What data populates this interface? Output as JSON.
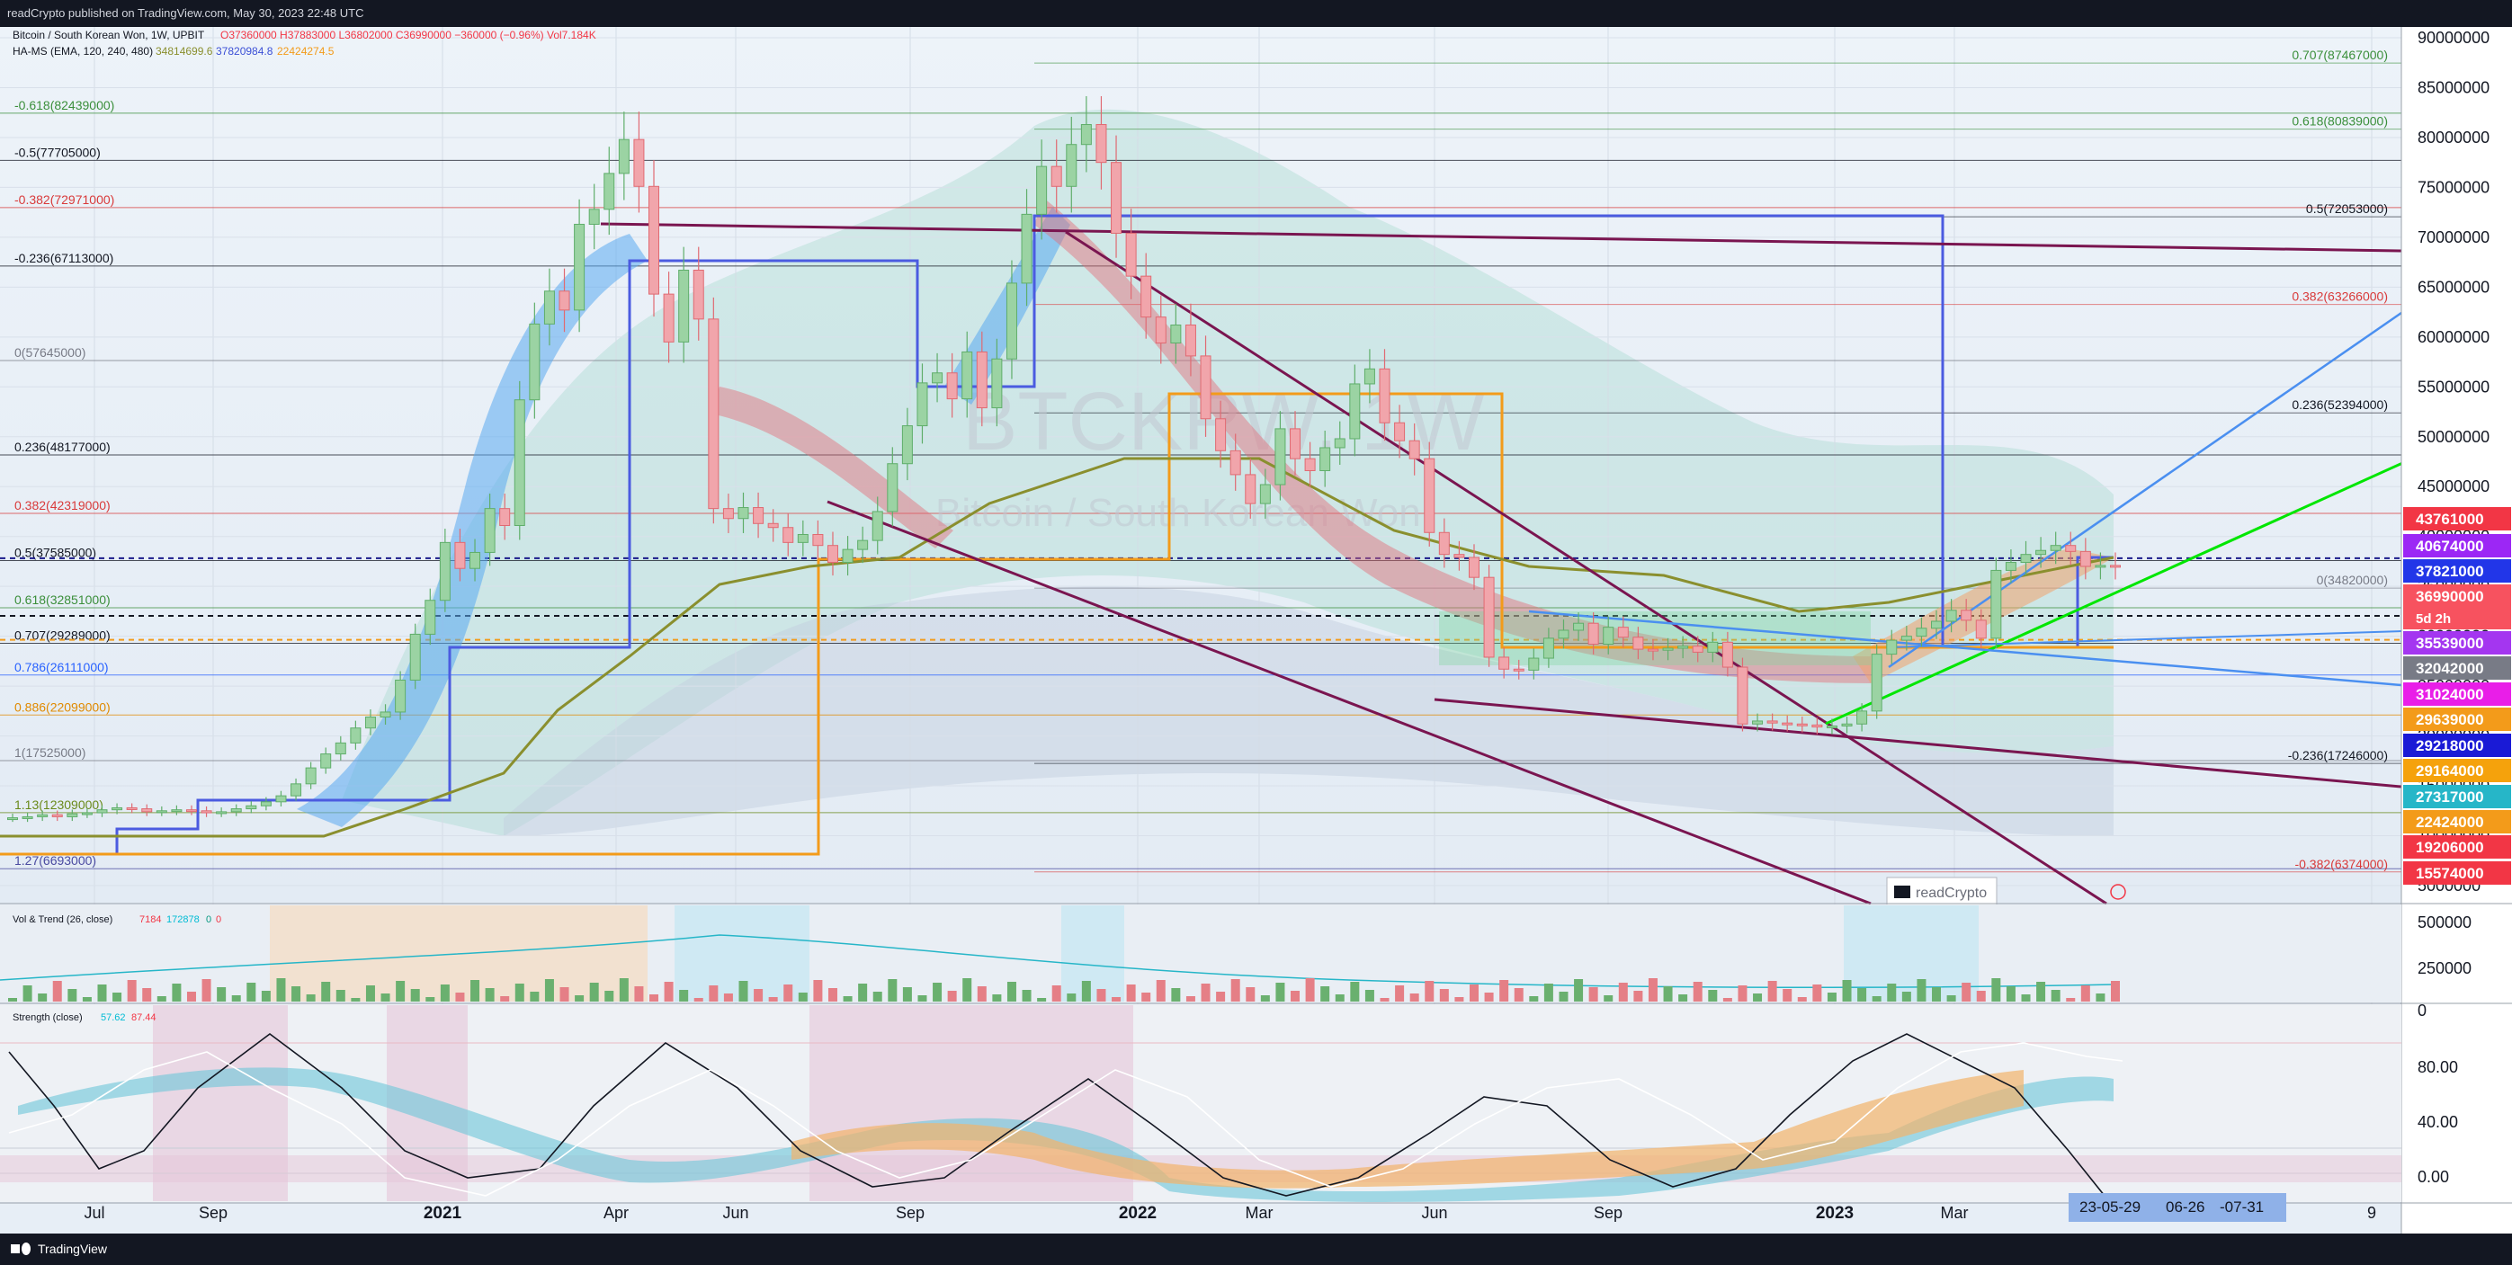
{
  "header": {
    "published": "readCrypto published on TradingView.com, May 30, 2023 22:48 UTC"
  },
  "legend": {
    "symbol": "Bitcoin / South Korean Won, 1W, UPBIT",
    "ohlc": "O37360000 H37883000 L36802000 C36990000 −360000 (−0.96%) Vol7.184K",
    "indicator_label": "HA-MS (EMA, 120, 240, 480)",
    "indicator_values": [
      "34814699.6",
      "37820984.8",
      "22424274.5"
    ],
    "indicator_colors": [
      "#8a8f2e",
      "#3b4fd6",
      "#f39b1a"
    ]
  },
  "watermark": {
    "ticker": "BTCKRW, 1W",
    "name": "Bitcoin / South Korean Won"
  },
  "chart_data": {
    "type": "candlestick",
    "symbol": "BTC/KRW",
    "exchange": "UPBIT",
    "timeframe": "1W",
    "y_axis": {
      "ticks": [
        "90000000",
        "85000000",
        "80000000",
        "75000000",
        "70000000",
        "65000000",
        "60000000",
        "55000000",
        "50000000",
        "45000000",
        "40000000",
        "35000000",
        "30000000",
        "25000000",
        "20000000",
        "15000000",
        "10000000",
        "5000000"
      ],
      "range": [
        5000000,
        90000000
      ]
    },
    "x_axis": {
      "ticks": [
        "Jul",
        "Sep",
        "2021",
        "Apr",
        "Jun",
        "Sep",
        "2022",
        "Mar",
        "Jun",
        "Sep",
        "2023",
        "Mar",
        "9"
      ],
      "highlight": [
        "23-05-29",
        "06-26",
        "-07-31"
      ]
    },
    "price_labels": [
      {
        "label": "43761000",
        "color": "#f23645"
      },
      {
        "label": "40674000",
        "color": "#9c27f5"
      },
      {
        "label": "37821000",
        "color": "#2236e8"
      },
      {
        "label": "36990000",
        "sub": "5d 2h",
        "color": "#f7525f"
      },
      {
        "label": "35539000",
        "color": "#a436f0"
      },
      {
        "label": "32042000",
        "color": "#787b86"
      },
      {
        "label": "31024000",
        "color": "#e91ee8"
      },
      {
        "label": "29639000",
        "color": "#f39b1a"
      },
      {
        "label": "29218000",
        "color": "#1a1ad6"
      },
      {
        "label": "29164000",
        "color": "#f5a20c"
      },
      {
        "label": "27317000",
        "color": "#26b6c8"
      },
      {
        "label": "22424000",
        "color": "#f39b1a"
      },
      {
        "label": "19206000",
        "color": "#f23645"
      },
      {
        "label": "15574000",
        "color": "#f23645"
      }
    ],
    "fib_left": [
      {
        "label": "-0.618(82439000)",
        "color": "#3b8f3b",
        "value": 82439000
      },
      {
        "label": "-0.5(77705000)",
        "color": "#131722",
        "value": 77705000
      },
      {
        "label": "-0.382(72971000)",
        "color": "#d93a3a",
        "value": 72971000
      },
      {
        "label": "-0.236(67113000)",
        "color": "#131722",
        "value": 67113000
      },
      {
        "label": "0(57645000)",
        "color": "#787b86",
        "value": 57645000
      },
      {
        "label": "0.236(48177000)",
        "color": "#131722",
        "value": 48177000
      },
      {
        "label": "0.382(42319000)",
        "color": "#d93a3a",
        "value": 42319000
      },
      {
        "label": "0.5(37585000)",
        "color": "#131722",
        "value": 37585000
      },
      {
        "label": "0.618(32851000)",
        "color": "#3b8f3b",
        "value": 32851000
      },
      {
        "label": "0.707(29289000)",
        "color": "#131722",
        "value": 29289000
      },
      {
        "label": "0.786(26111000)",
        "color": "#2962ff",
        "value": 26111000
      },
      {
        "label": "0.886(22099000)",
        "color": "#e08a00",
        "value": 22099000
      },
      {
        "label": "1(17525000)",
        "color": "#787b86",
        "value": 17525000
      },
      {
        "label": "1.13(12309000)",
        "color": "#6a8a1a",
        "value": 12309000
      },
      {
        "label": "1.27(6693000)",
        "color": "#4a4aa0",
        "value": 6693000
      }
    ],
    "fib_right": [
      {
        "label": "0.707(87467000)",
        "color": "#3b8f3b",
        "value": 87467000
      },
      {
        "label": "0.618(80839000)",
        "color": "#3b8f3b",
        "value": 80839000
      },
      {
        "label": "0.5(72053000)",
        "color": "#131722",
        "value": 72053000
      },
      {
        "label": "0.382(63266000)",
        "color": "#d93a3a",
        "value": 63266000
      },
      {
        "label": "0.236(52394000)",
        "color": "#131722",
        "value": 52394000
      },
      {
        "label": "0(34820000)",
        "color": "#787b86",
        "value": 34820000
      },
      {
        "label": "-0.236(17246000)",
        "color": "#131722",
        "value": 17246000
      },
      {
        "label": "-0.382(6374000)",
        "color": "#d93a3a",
        "value": 6374000
      }
    ],
    "candles_weekly_close_approx": [
      11800000,
      11900000,
      12100000,
      11900000,
      12200000,
      12300000,
      12600000,
      12800000,
      12700000,
      12400000,
      12500000,
      12600000,
      12500000,
      12300000,
      12400000,
      12700000,
      13000000,
      13400000,
      14000000,
      15200000,
      16800000,
      18200000,
      19300000,
      20800000,
      21900000,
      22400000,
      25600000,
      30200000,
      33600000,
      39400000,
      36800000,
      38400000,
      42800000,
      41100000,
      53700000,
      61300000,
      64600000,
      62700000,
      71300000,
      72800000,
      76400000,
      79800000,
      75100000,
      64300000,
      59500000,
      66700000,
      61800000,
      42800000,
      41800000,
      42900000,
      41300000,
      40900000,
      39400000,
      40200000,
      39100000,
      37400000,
      38700000,
      39600000,
      42500000,
      47300000,
      51100000,
      55400000,
      56400000,
      53800000,
      58500000,
      52900000,
      57800000,
      65400000,
      72300000,
      77100000,
      75100000,
      79300000,
      81300000,
      77500000,
      70400000,
      66100000,
      62000000,
      59400000,
      61200000,
      58100000,
      51800000,
      48600000,
      46200000,
      43300000,
      45200000,
      50800000,
      47800000,
      46600000,
      48900000,
      49800000,
      55300000,
      56800000,
      51400000,
      49600000,
      47800000,
      40400000,
      38200000,
      37900000,
      35900000,
      27900000,
      26700000,
      26600000,
      27800000,
      29800000,
      30600000,
      31300000,
      29200000,
      30900000,
      29900000,
      28700000,
      28600000,
      28800000,
      29000000,
      28400000,
      29400000,
      26900000,
      21200000,
      21500000,
      21300000,
      21200000,
      21100000,
      20900000,
      21000000,
      21200000,
      22500000,
      28200000,
      29600000,
      30000000,
      30800000,
      31500000,
      32600000,
      31600000,
      29800000,
      36600000,
      37400000,
      38200000,
      38600000,
      39100000,
      38500000,
      37000000,
      37100000,
      36990000
    ]
  },
  "panes": {
    "volume": {
      "label": "Vol & Trend (26, close)",
      "values": [
        "7184",
        "172878",
        "0",
        "0"
      ],
      "value_colors": [
        "#f23645",
        "#00bcd4",
        "#089981",
        "#f23645"
      ],
      "ticks": [
        "500000",
        "250000",
        "0"
      ]
    },
    "strength": {
      "label": "Strength (close)",
      "values": [
        "57.62",
        "87.44"
      ],
      "value_colors": [
        "#00bcd4",
        "#f23645"
      ],
      "ticks": [
        "80.00",
        "40.00",
        "0.00"
      ]
    }
  },
  "overlay": {
    "badge": "readCrypto"
  },
  "footer": {
    "brand": "TradingView"
  }
}
